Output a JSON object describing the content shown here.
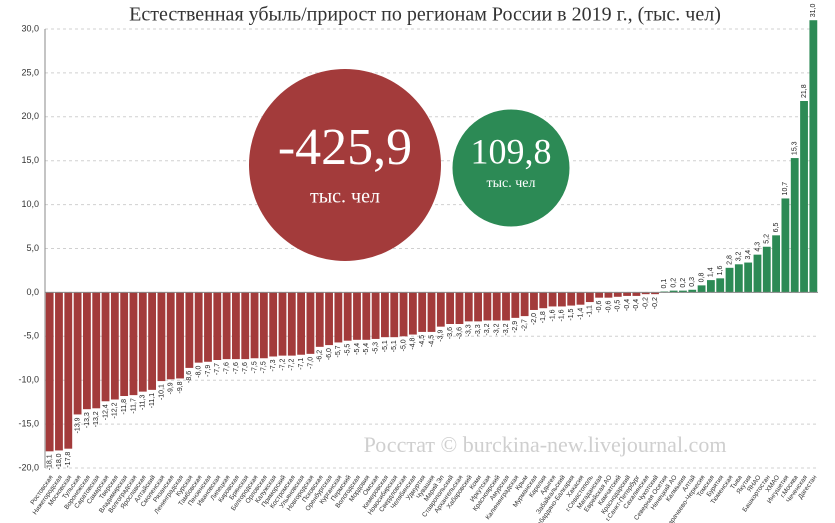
{
  "chart_data": {
    "type": "bar",
    "title": "Естественная убыль/прирост по регионам России в 2019 г., (тыс. чел)",
    "categories": [
      "Ростовская",
      "Нижегородская",
      "Московская",
      "Тульская",
      "Воронежская",
      "Саратовская",
      "Самарская",
      "Тверская",
      "Владимирская",
      "Волгоградская",
      "Ярославская",
      "Алтайский",
      "Смоленская",
      "Рязанская",
      "Ленинградская",
      "Курская",
      "Тамбовская",
      "Пензенская",
      "Ивановская",
      "Липецкая",
      "Кировская",
      "Брянская",
      "Белгородская",
      "Орловская",
      "Калужская",
      "Приморский",
      "Костромская",
      "Ульяновская",
      "Новгородская",
      "Псковская",
      "Оренбургская",
      "Курганская",
      "Пермский",
      "Вологодская",
      "Мордовия",
      "Омская",
      "Кемеровская",
      "Новосибирская",
      "Свердловская",
      "Челябинская",
      "Удмуртия",
      "Чувашия",
      "Марий Эл",
      "Ставропольский",
      "Архангельская",
      "Хабаровский",
      "Коми",
      "Иркутская",
      "Красноярский",
      "Амурская",
      "Калининградская",
      "Крым",
      "Мурманская",
      "Карелия",
      "Адыгея",
      "Забайкальский",
      "Кабардино-Балкария",
      "Хакасия",
      "г.Севастополь",
      "Магаданская",
      "Еврейская АО",
      "Камчатский",
      "Краснодарский",
      "г.Санкт-Петербург",
      "Сахалинская",
      "Чукотский",
      "Северная Осетия",
      "Ненецкий АО",
      "Калмыкия",
      "Алтай",
      "Карачаево-Черкесия",
      "Томская",
      "Бурятия",
      "Тюменская",
      "Тыва",
      "Якутия",
      "ЯНАО",
      "Башкортостан",
      "ХМАО",
      "Ингушетия",
      "г.Москва",
      "Чеченская",
      "Дагестан"
    ],
    "values": [
      -18.1,
      -18.0,
      -17.8,
      -13.9,
      -13.3,
      -13.2,
      -12.4,
      -12.2,
      -11.8,
      -11.7,
      -11.3,
      -11.1,
      -10.1,
      -9.9,
      -9.8,
      -8.6,
      -8.0,
      -7.9,
      -7.7,
      -7.6,
      -7.6,
      -7.6,
      -7.5,
      -7.5,
      -7.3,
      -7.2,
      -7.2,
      -7.1,
      -7.0,
      -6.2,
      -6.0,
      -5.7,
      -5.5,
      -5.4,
      -5.4,
      -5.3,
      -5.1,
      -5.1,
      -5.0,
      -4.8,
      -4.5,
      -4.5,
      -3.9,
      -3.6,
      -3.6,
      -3.3,
      -3.3,
      -3.2,
      -3.2,
      -3.2,
      -2.9,
      -2.7,
      -2.0,
      -1.8,
      -1.6,
      -1.6,
      -1.5,
      -1.4,
      -1.1,
      -0.6,
      -0.6,
      -0.5,
      -0.4,
      -0.4,
      -0.2,
      -0.2,
      0.1,
      0.2,
      0.2,
      0.3,
      0.8,
      1.4,
      1.6,
      2.8,
      3.2,
      3.4,
      4.3,
      5.2,
      6.5,
      10.7,
      15.3,
      21.8,
      31.0
    ],
    "value_labels": [
      "-18,1",
      "-18,0",
      "-17,8",
      "-13,9",
      "-13,3",
      "-13,2",
      "-12,4",
      "-12,2",
      "-11,8",
      "-11,7",
      "-11,3",
      "-11,1",
      "-10,1",
      "-9,9",
      "-9,8",
      "-8,6",
      "-8,0",
      "-7,9",
      "-7,7",
      "-7,6",
      "-7,6",
      "-7,6",
      "-7,5",
      "-7,5",
      "-7,3",
      "-7,2",
      "-7,2",
      "-7,1",
      "-7,0",
      "-6,2",
      "-6,0",
      "-5,7",
      "-5,5",
      "-5,4",
      "-5,4",
      "-5,3",
      "-5,1",
      "-5,1",
      "-5,0",
      "-4,8",
      "-4,5",
      "-4,5",
      "-3,9",
      "-3,6",
      "-3,6",
      "-3,3",
      "-3,3",
      "-3,2",
      "-3,2",
      "-3,2",
      "-2,9",
      "-2,7",
      "-2,0",
      "-1,8",
      "-1,6",
      "-1,6",
      "-1,5",
      "-1,4",
      "-1,1",
      "-0,6",
      "-0,6",
      "-0,5",
      "-0,4",
      "-0,4",
      "-0,2",
      "-0,2",
      "0,1",
      "0,2",
      "0,2",
      "0,3",
      "0,8",
      "1,4",
      "1,6",
      "2,8",
      "3,2",
      "3,4",
      "4,3",
      "5,2",
      "6,5",
      "10,7",
      "15,3",
      "21,8",
      "31,0"
    ],
    "color": "#a33b3b",
    "positive_color": "#2c8a55",
    "ylim": [
      -20,
      30
    ],
    "yticks": [
      {
        "value": -20,
        "label": "-20,0"
      },
      {
        "value": -15,
        "label": "-15,0"
      },
      {
        "value": -10,
        "label": "-10,0"
      },
      {
        "value": -5,
        "label": "-5,0"
      },
      {
        "value": 0,
        "label": "0,0"
      },
      {
        "value": 5,
        "label": "5,0"
      },
      {
        "value": 10,
        "label": "10,0"
      },
      {
        "value": 15,
        "label": "15,0"
      },
      {
        "value": 20,
        "label": "20,0"
      },
      {
        "value": 25,
        "label": "25,0"
      },
      {
        "value": 30,
        "label": "30,0"
      }
    ],
    "grid": true,
    "annotations": {
      "loss": "-425,9",
      "gain": "109,8",
      "unit": "тыс. чел",
      "source": "Росстат © burckina-new.livejournal.com"
    }
  }
}
